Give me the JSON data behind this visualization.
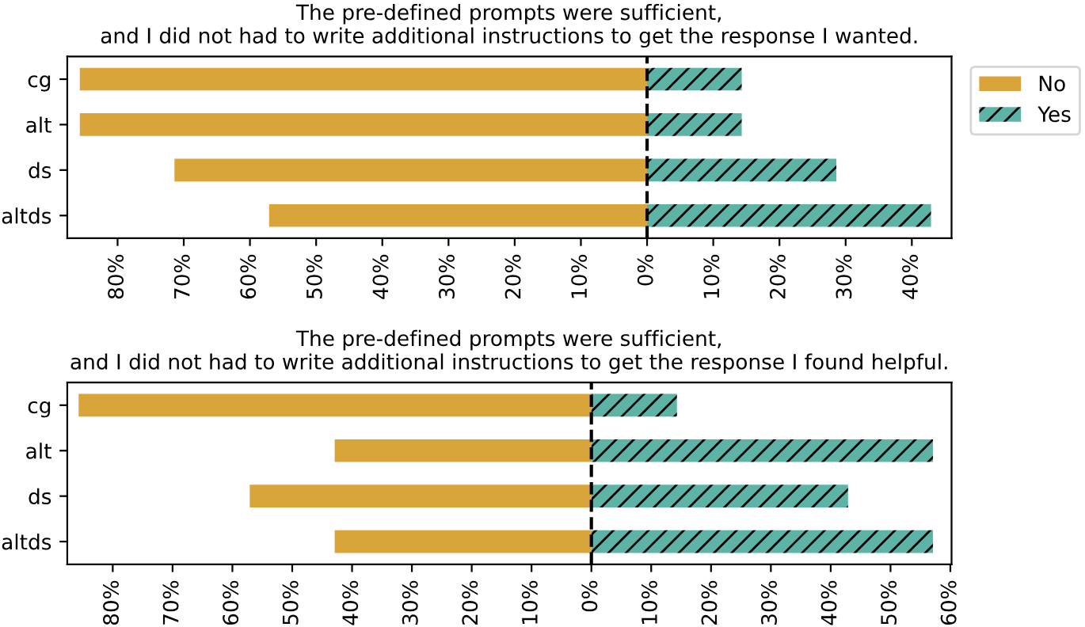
{
  "chart_data": [
    {
      "type": "bar",
      "orientation": "horizontal",
      "stacked": true,
      "title": "The pre-defined prompts were sufficient,\nand I did not had to write additional instructions to get the response I wanted.",
      "categories": [
        "cg",
        "alt",
        "ds",
        "altds"
      ],
      "series": [
        {
          "name": "No",
          "color": "#d9a53a",
          "values": [
            -85.7,
            -85.7,
            -71.4,
            -57.1
          ]
        },
        {
          "name": "Yes",
          "color": "#5db3a6",
          "values": [
            14.3,
            14.3,
            28.6,
            42.9
          ]
        }
      ],
      "xlim": [
        -87.6,
        46
      ],
      "xticks": [
        {
          "value": -80,
          "label": "80%"
        },
        {
          "value": -70,
          "label": "70%"
        },
        {
          "value": -60,
          "label": "60%"
        },
        {
          "value": -50,
          "label": "50%"
        },
        {
          "value": -40,
          "label": "40%"
        },
        {
          "value": -30,
          "label": "30%"
        },
        {
          "value": -20,
          "label": "20%"
        },
        {
          "value": -10,
          "label": "10%"
        },
        {
          "value": 0,
          "label": "0%"
        },
        {
          "value": 10,
          "label": "10%"
        },
        {
          "value": 20,
          "label": "20%"
        },
        {
          "value": 30,
          "label": "30%"
        },
        {
          "value": 40,
          "label": "40%"
        }
      ],
      "ref_lines": [
        {
          "axis": "x",
          "value": 0,
          "color": "#000000",
          "line_style": "dashed"
        }
      ],
      "legend": "top right",
      "grid": false
    },
    {
      "type": "bar",
      "orientation": "horizontal",
      "stacked": true,
      "title": "The pre-defined prompts were sufficient,\nand I did not had to write additional instructions to get the response I found helpful.",
      "categories": [
        "cg",
        "alt",
        "ds",
        "altds"
      ],
      "series": [
        {
          "color": "#d9a53a",
          "values": [
            -85.7,
            -42.9,
            -57.1,
            -42.9
          ]
        },
        {
          "color": "#5db3a6",
          "values": [
            14.3,
            57.1,
            42.9,
            57.1
          ]
        }
      ],
      "xlim": [
        -87.6,
        60.2
      ],
      "xticks": [
        {
          "value": -80,
          "label": "80%"
        },
        {
          "value": -70,
          "label": "70%"
        },
        {
          "value": -60,
          "label": "60%"
        },
        {
          "value": -50,
          "label": "50%"
        },
        {
          "value": -40,
          "label": "40%"
        },
        {
          "value": -30,
          "label": "30%"
        },
        {
          "value": -20,
          "label": "20%"
        },
        {
          "value": -10,
          "label": "10%"
        },
        {
          "value": 0,
          "label": "0%"
        },
        {
          "value": 10,
          "label": "10%"
        },
        {
          "value": 20,
          "label": "20%"
        },
        {
          "value": 30,
          "label": "30%"
        },
        {
          "value": 40,
          "label": "40%"
        },
        {
          "value": 50,
          "label": "50%"
        },
        {
          "value": 60,
          "label": "60%"
        }
      ],
      "ref_lines": [
        {
          "axis": "x",
          "value": 0,
          "color": "#000000",
          "line_style": "dashed"
        }
      ],
      "grid": false
    }
  ]
}
